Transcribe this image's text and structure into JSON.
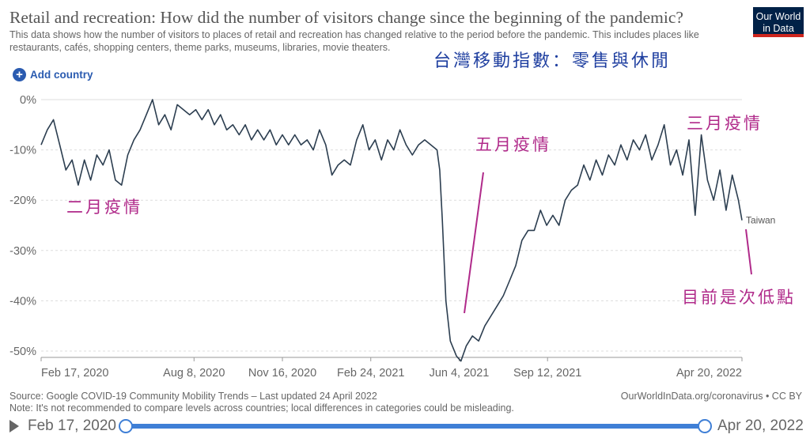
{
  "header": {
    "title": "Retail and recreation: How did the number of visitors change since the beginning of the pandemic?",
    "subtitle": "This data shows how the number of visitors to places of retail and recreation has changed relative to the period before the pandemic. This includes places like restaurants, cafés, shopping centers, theme parks, museums, libraries, movie theaters.",
    "logo_line1": "Our World",
    "logo_line2": "in Data",
    "add_country_label": "Add country"
  },
  "chart_data": {
    "type": "line",
    "title": "",
    "xlabel": "",
    "ylabel": "",
    "ylim": [
      -52,
      0
    ],
    "y_ticks": [
      "0%",
      "-10%",
      "-20%",
      "-30%",
      "-40%",
      "-50%"
    ],
    "y_tick_values": [
      0,
      -10,
      -20,
      -30,
      -40,
      -50
    ],
    "x_ticks": [
      "Feb 17, 2020",
      "Aug 8, 2020",
      "Nov 16, 2020",
      "Feb 24, 2021",
      "Jun 4, 2021",
      "Sep 12, 2021",
      "Apr 20, 2022"
    ],
    "x_tick_dates": [
      "2020-02-17",
      "2020-08-08",
      "2020-11-16",
      "2021-02-24",
      "2021-06-04",
      "2021-09-12",
      "2022-04-20"
    ],
    "x_range": [
      "2020-02-17",
      "2022-04-20"
    ],
    "grid": "horizontal dashed",
    "line_color": "#2c3e50",
    "series": [
      {
        "name": "Taiwan",
        "points": [
          [
            "2020-02-17",
            -9
          ],
          [
            "2020-02-24",
            -6
          ],
          [
            "2020-03-02",
            -4
          ],
          [
            "2020-03-09",
            -9
          ],
          [
            "2020-03-16",
            -14
          ],
          [
            "2020-03-23",
            -12
          ],
          [
            "2020-03-30",
            -17
          ],
          [
            "2020-04-06",
            -12
          ],
          [
            "2020-04-13",
            -16
          ],
          [
            "2020-04-20",
            -11
          ],
          [
            "2020-04-27",
            -13
          ],
          [
            "2020-05-04",
            -10
          ],
          [
            "2020-05-11",
            -16
          ],
          [
            "2020-05-18",
            -17
          ],
          [
            "2020-05-25",
            -11
          ],
          [
            "2020-06-01",
            -8
          ],
          [
            "2020-06-08",
            -6
          ],
          [
            "2020-06-15",
            -3
          ],
          [
            "2020-06-22",
            0
          ],
          [
            "2020-06-29",
            -5
          ],
          [
            "2020-07-06",
            -3
          ],
          [
            "2020-07-13",
            -6
          ],
          [
            "2020-07-20",
            -1
          ],
          [
            "2020-07-27",
            -2
          ],
          [
            "2020-08-03",
            -3
          ],
          [
            "2020-08-10",
            -2
          ],
          [
            "2020-08-17",
            -4
          ],
          [
            "2020-08-24",
            -2
          ],
          [
            "2020-08-31",
            -5
          ],
          [
            "2020-09-07",
            -3
          ],
          [
            "2020-09-14",
            -6
          ],
          [
            "2020-09-21",
            -5
          ],
          [
            "2020-09-28",
            -7
          ],
          [
            "2020-10-05",
            -5
          ],
          [
            "2020-10-12",
            -8
          ],
          [
            "2020-10-19",
            -6
          ],
          [
            "2020-10-26",
            -8
          ],
          [
            "2020-11-02",
            -6
          ],
          [
            "2020-11-09",
            -9
          ],
          [
            "2020-11-16",
            -7
          ],
          [
            "2020-11-23",
            -9
          ],
          [
            "2020-11-30",
            -7
          ],
          [
            "2020-12-07",
            -9
          ],
          [
            "2020-12-14",
            -8
          ],
          [
            "2020-12-21",
            -10
          ],
          [
            "2020-12-28",
            -6
          ],
          [
            "2021-01-04",
            -9
          ],
          [
            "2021-01-11",
            -15
          ],
          [
            "2021-01-18",
            -13
          ],
          [
            "2021-01-25",
            -12
          ],
          [
            "2021-02-01",
            -13
          ],
          [
            "2021-02-08",
            -8
          ],
          [
            "2021-02-15",
            -5
          ],
          [
            "2021-02-22",
            -10
          ],
          [
            "2021-03-01",
            -8
          ],
          [
            "2021-03-08",
            -12
          ],
          [
            "2021-03-15",
            -8
          ],
          [
            "2021-03-22",
            -10
          ],
          [
            "2021-03-29",
            -6
          ],
          [
            "2021-04-05",
            -9
          ],
          [
            "2021-04-12",
            -11
          ],
          [
            "2021-04-19",
            -9
          ],
          [
            "2021-04-26",
            -8
          ],
          [
            "2021-05-03",
            -9
          ],
          [
            "2021-05-10",
            -10
          ],
          [
            "2021-05-13",
            -14
          ],
          [
            "2021-05-16",
            -24
          ],
          [
            "2021-05-20",
            -40
          ],
          [
            "2021-05-25",
            -48
          ],
          [
            "2021-06-01",
            -51
          ],
          [
            "2021-06-06",
            -52
          ],
          [
            "2021-06-12",
            -49
          ],
          [
            "2021-06-19",
            -47
          ],
          [
            "2021-06-26",
            -48
          ],
          [
            "2021-07-03",
            -45
          ],
          [
            "2021-07-10",
            -43
          ],
          [
            "2021-07-17",
            -41
          ],
          [
            "2021-07-24",
            -39
          ],
          [
            "2021-07-31",
            -36
          ],
          [
            "2021-08-07",
            -33
          ],
          [
            "2021-08-14",
            -28
          ],
          [
            "2021-08-21",
            -26
          ],
          [
            "2021-08-28",
            -26
          ],
          [
            "2021-09-04",
            -22
          ],
          [
            "2021-09-11",
            -25
          ],
          [
            "2021-09-18",
            -23
          ],
          [
            "2021-09-25",
            -25
          ],
          [
            "2021-10-02",
            -20
          ],
          [
            "2021-10-09",
            -18
          ],
          [
            "2021-10-16",
            -17
          ],
          [
            "2021-10-23",
            -13
          ],
          [
            "2021-10-30",
            -16
          ],
          [
            "2021-11-06",
            -12
          ],
          [
            "2021-11-13",
            -15
          ],
          [
            "2021-11-20",
            -11
          ],
          [
            "2021-11-27",
            -13
          ],
          [
            "2021-12-04",
            -9
          ],
          [
            "2021-12-11",
            -12
          ],
          [
            "2021-12-18",
            -8
          ],
          [
            "2021-12-25",
            -10
          ],
          [
            "2022-01-01",
            -7
          ],
          [
            "2022-01-08",
            -12
          ],
          [
            "2022-01-15",
            -9
          ],
          [
            "2022-01-22",
            -5
          ],
          [
            "2022-01-29",
            -13
          ],
          [
            "2022-02-05",
            -10
          ],
          [
            "2022-02-12",
            -15
          ],
          [
            "2022-02-19",
            -8
          ],
          [
            "2022-02-26",
            -23
          ],
          [
            "2022-03-05",
            -7
          ],
          [
            "2022-03-12",
            -16
          ],
          [
            "2022-03-19",
            -20
          ],
          [
            "2022-03-26",
            -14
          ],
          [
            "2022-04-02",
            -22
          ],
          [
            "2022-04-09",
            -15
          ],
          [
            "2022-04-16",
            -20
          ],
          [
            "2022-04-20",
            -24
          ]
        ]
      }
    ],
    "annotations": [
      {
        "text": "台灣移動指數：零售與休閒",
        "color": "#1f3fa0"
      },
      {
        "text": "二月疫情",
        "color": "#b02a8a"
      },
      {
        "text": "五月疫情",
        "color": "#b02a8a"
      },
      {
        "text": "三月疫情",
        "color": "#b02a8a"
      },
      {
        "text": "目前是次低點",
        "color": "#b02a8a"
      }
    ]
  },
  "footer": {
    "source": "Source: Google COVID-19 Community Mobility Trends – Last updated 24 April 2022",
    "note": "Note: It's not recommended to compare levels across countries; local differences in categories could be misleading.",
    "credit": "OurWorldInData.org/coronavirus • CC BY"
  },
  "timeline": {
    "start_label": "Feb 17, 2020",
    "end_label": "Apr 20, 2022"
  }
}
